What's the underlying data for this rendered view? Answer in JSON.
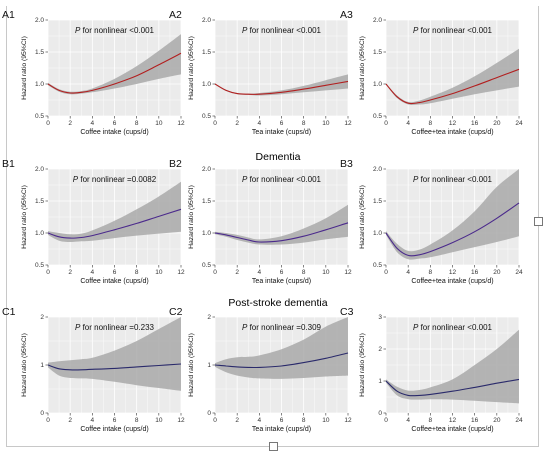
{
  "colors": {
    "panel_bg": "#ebebeb",
    "grid": "#ffffff",
    "band": "#a9a9a9",
    "row_a_line": "#b21f1f",
    "row_b_line": "#4b2a8c",
    "row_c_line": "#2a2a6b"
  },
  "sections": {
    "b_title": "Dementia",
    "c_title": "Post-stroke dementia"
  },
  "chart_data": [
    {
      "id": "A1",
      "type": "line",
      "row": 0,
      "col": 0,
      "color_key": "row_a_line",
      "annotation_italic": "P",
      "annotation_text": " for nonlinear <0.001",
      "xlabel": "Coffee intake (cups/d)",
      "ylabel": "Hazard ratio (95%CI)",
      "xlim": [
        0,
        12
      ],
      "xticks": [
        "0",
        "2",
        "4",
        "6",
        "8",
        "10",
        "12"
      ],
      "ylim": [
        0.5,
        2.0
      ],
      "yticks": [
        "0.5",
        "1.0",
        "1.5",
        "2.0"
      ],
      "x": [
        0,
        1,
        2,
        3,
        4,
        6,
        8,
        10,
        12
      ],
      "y": [
        1.0,
        0.9,
        0.86,
        0.87,
        0.9,
        1.0,
        1.13,
        1.3,
        1.48
      ],
      "lower": [
        0.98,
        0.88,
        0.84,
        0.85,
        0.87,
        0.93,
        1.0,
        1.08,
        1.15
      ],
      "upper": [
        1.02,
        0.92,
        0.88,
        0.89,
        0.93,
        1.08,
        1.28,
        1.52,
        1.78
      ]
    },
    {
      "id": "A2",
      "type": "line",
      "row": 0,
      "col": 1,
      "color_key": "row_a_line",
      "annotation_italic": "P",
      "annotation_text": " for nonlinear <0.001",
      "xlabel": "Tea intake (cups/d)",
      "ylabel": "Hazard ratio (95%CI)",
      "xlim": [
        0,
        12
      ],
      "xticks": [
        "0",
        "2",
        "4",
        "6",
        "8",
        "10",
        "12"
      ],
      "ylim": [
        0.5,
        2.0
      ],
      "yticks": [
        "0.5",
        "1.0",
        "1.5",
        "2.0"
      ],
      "x": [
        0,
        1,
        2,
        3,
        4,
        6,
        8,
        10,
        12
      ],
      "y": [
        1.0,
        0.9,
        0.85,
        0.84,
        0.84,
        0.87,
        0.92,
        0.98,
        1.04
      ],
      "lower": [
        0.99,
        0.89,
        0.84,
        0.83,
        0.82,
        0.84,
        0.87,
        0.9,
        0.93
      ],
      "upper": [
        1.01,
        0.91,
        0.86,
        0.85,
        0.86,
        0.9,
        0.97,
        1.06,
        1.15
      ]
    },
    {
      "id": "A3",
      "type": "line",
      "row": 0,
      "col": 2,
      "color_key": "row_a_line",
      "annotation_italic": "P",
      "annotation_text": " for nonlinear <0.001",
      "xlabel": "Coffee+tea intake (cups/d)",
      "ylabel": "Hazard ratio (95%CI)",
      "xlim": [
        0,
        24
      ],
      "xticks": [
        "0",
        "4",
        "8",
        "12",
        "16",
        "20",
        "24"
      ],
      "ylim": [
        0.5,
        2.0
      ],
      "yticks": [
        "0.5",
        "1.0",
        "1.5",
        "2.0"
      ],
      "x": [
        0,
        2,
        4,
        6,
        8,
        12,
        16,
        20,
        24
      ],
      "y": [
        1.0,
        0.8,
        0.7,
        0.71,
        0.75,
        0.85,
        0.97,
        1.1,
        1.23
      ],
      "lower": [
        0.99,
        0.78,
        0.68,
        0.68,
        0.7,
        0.77,
        0.84,
        0.9,
        0.96
      ],
      "upper": [
        1.01,
        0.82,
        0.72,
        0.74,
        0.8,
        0.94,
        1.12,
        1.33,
        1.55
      ]
    },
    {
      "id": "B1",
      "type": "line",
      "row": 1,
      "col": 0,
      "color_key": "row_b_line",
      "annotation_italic": "P",
      "annotation_text": " for nonlinear =0.0082",
      "xlabel": "Coffee intake (cups/d)",
      "ylabel": "Hazard ratio (95%CI)",
      "xlim": [
        0,
        12
      ],
      "xticks": [
        "0",
        "2",
        "4",
        "6",
        "8",
        "10",
        "12"
      ],
      "ylim": [
        0.5,
        2.0
      ],
      "yticks": [
        "0.5",
        "1.0",
        "1.5",
        "2.0"
      ],
      "x": [
        0,
        1,
        2,
        3,
        4,
        6,
        8,
        10,
        12
      ],
      "y": [
        1.0,
        0.94,
        0.92,
        0.93,
        0.96,
        1.05,
        1.15,
        1.26,
        1.37
      ],
      "lower": [
        0.97,
        0.88,
        0.86,
        0.87,
        0.88,
        0.92,
        0.96,
        0.99,
        1.02
      ],
      "upper": [
        1.03,
        1.0,
        0.98,
        0.99,
        1.04,
        1.19,
        1.37,
        1.57,
        1.8
      ]
    },
    {
      "id": "B2",
      "type": "line",
      "row": 1,
      "col": 1,
      "color_key": "row_b_line",
      "annotation_italic": "P",
      "annotation_text": " for nonlinear <0.001",
      "xlabel": "Tea intake (cups/d)",
      "ylabel": "Hazard ratio (95%CI)",
      "xlim": [
        0,
        12
      ],
      "xticks": [
        "0",
        "2",
        "4",
        "6",
        "8",
        "10",
        "12"
      ],
      "ylim": [
        0.5,
        2.0
      ],
      "yticks": [
        "0.5",
        "1.0",
        "1.5",
        "2.0"
      ],
      "x": [
        0,
        1,
        2,
        3,
        4,
        6,
        8,
        10,
        12
      ],
      "y": [
        1.0,
        0.97,
        0.93,
        0.89,
        0.86,
        0.88,
        0.95,
        1.05,
        1.16
      ],
      "lower": [
        0.98,
        0.94,
        0.89,
        0.85,
        0.82,
        0.82,
        0.85,
        0.9,
        0.94
      ],
      "upper": [
        1.02,
        1.0,
        0.97,
        0.93,
        0.9,
        0.95,
        1.07,
        1.23,
        1.44
      ]
    },
    {
      "id": "B3",
      "type": "line",
      "row": 1,
      "col": 2,
      "color_key": "row_b_line",
      "annotation_italic": "P",
      "annotation_text": " for nonlinear <0.001",
      "xlabel": "Coffee+tea intake (cups/d)",
      "ylabel": "Hazard ratio (95%CI)",
      "xlim": [
        0,
        24
      ],
      "xticks": [
        "0",
        "4",
        "8",
        "12",
        "16",
        "20",
        "24"
      ],
      "ylim": [
        0.5,
        2.0
      ],
      "yticks": [
        "0.5",
        "1.0",
        "1.5",
        "2.0"
      ],
      "x": [
        0,
        2,
        4,
        6,
        8,
        12,
        16,
        20,
        24
      ],
      "y": [
        1.0,
        0.76,
        0.65,
        0.66,
        0.71,
        0.85,
        1.02,
        1.23,
        1.47
      ],
      "lower": [
        0.97,
        0.7,
        0.59,
        0.6,
        0.62,
        0.7,
        0.78,
        0.86,
        0.95
      ],
      "upper": [
        1.03,
        0.83,
        0.72,
        0.74,
        0.82,
        1.04,
        1.34,
        1.72,
        2.05
      ]
    },
    {
      "id": "C1",
      "type": "line",
      "row": 2,
      "col": 0,
      "color_key": "row_c_line",
      "annotation_italic": "P",
      "annotation_text": " for nonlinear =0.233",
      "xlabel": "Coffee intake (cups/d)",
      "ylabel": "Hazard ratio (95%CI)",
      "xlim": [
        0,
        12
      ],
      "xticks": [
        "0",
        "2",
        "4",
        "6",
        "8",
        "10",
        "12"
      ],
      "ylim": [
        0,
        2
      ],
      "yticks": [
        "0",
        "1",
        "2"
      ],
      "x": [
        0,
        1,
        2,
        3,
        4,
        6,
        8,
        10,
        12
      ],
      "y": [
        1.0,
        0.92,
        0.9,
        0.9,
        0.91,
        0.93,
        0.96,
        0.99,
        1.02
      ],
      "lower": [
        0.95,
        0.78,
        0.73,
        0.72,
        0.71,
        0.65,
        0.58,
        0.52,
        0.46
      ],
      "upper": [
        1.05,
        1.08,
        1.1,
        1.12,
        1.15,
        1.3,
        1.5,
        1.75,
        2.0
      ]
    },
    {
      "id": "C2",
      "type": "line",
      "row": 2,
      "col": 1,
      "color_key": "row_c_line",
      "annotation_italic": "P",
      "annotation_text": " for nonlinear =0.309",
      "xlabel": "Tea intake (cups/d)",
      "ylabel": "Hazard ratio (95%CI)",
      "xlim": [
        0,
        12
      ],
      "xticks": [
        "0",
        "2",
        "4",
        "6",
        "8",
        "10",
        "12"
      ],
      "ylim": [
        0,
        2
      ],
      "yticks": [
        "0",
        "1",
        "2"
      ],
      "x": [
        0,
        1,
        2,
        3,
        4,
        6,
        8,
        10,
        12
      ],
      "y": [
        1.0,
        0.98,
        0.96,
        0.95,
        0.95,
        0.98,
        1.05,
        1.14,
        1.25
      ],
      "lower": [
        0.96,
        0.85,
        0.78,
        0.74,
        0.72,
        0.71,
        0.73,
        0.76,
        0.78
      ],
      "upper": [
        1.04,
        1.12,
        1.16,
        1.17,
        1.2,
        1.33,
        1.53,
        1.8,
        2.0
      ]
    },
    {
      "id": "C3",
      "type": "line",
      "row": 2,
      "col": 2,
      "color_key": "row_c_line",
      "annotation_italic": "P",
      "annotation_text": " for nonlinear <0.001",
      "xlabel": "Coffee+tea intake (cups/d)",
      "ylabel": "Hazard ratio (95%CI)",
      "xlim": [
        0,
        24
      ],
      "xticks": [
        "0",
        "4",
        "8",
        "12",
        "16",
        "20",
        "24"
      ],
      "ylim": [
        0,
        3
      ],
      "yticks": [
        "0",
        "1",
        "2",
        "3"
      ],
      "x": [
        0,
        2,
        4,
        6,
        8,
        12,
        16,
        20,
        24
      ],
      "y": [
        1.0,
        0.68,
        0.55,
        0.55,
        0.58,
        0.68,
        0.8,
        0.93,
        1.05
      ],
      "lower": [
        0.95,
        0.55,
        0.43,
        0.42,
        0.43,
        0.42,
        0.38,
        0.34,
        0.3
      ],
      "upper": [
        1.05,
        0.82,
        0.7,
        0.72,
        0.8,
        1.05,
        1.5,
        2.0,
        2.6
      ]
    }
  ]
}
